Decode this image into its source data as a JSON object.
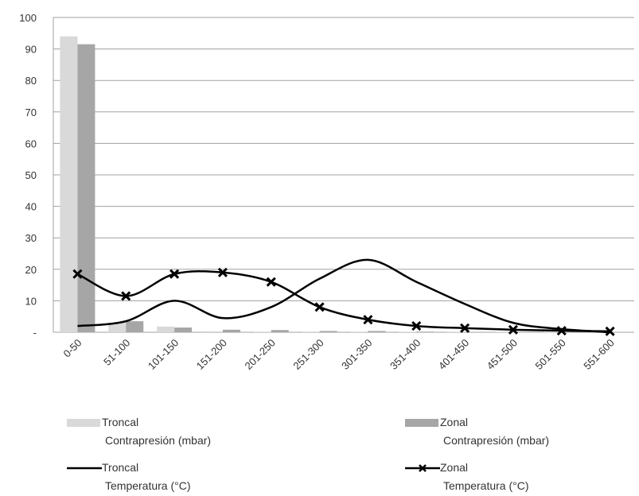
{
  "chart_data": {
    "type": "bar",
    "categories": [
      "0-50",
      "51-100",
      "101-150",
      "151-200",
      "201-250",
      "251-300",
      "301-350",
      "351-400",
      "401-450",
      "451-500",
      "501-550",
      "551-600"
    ],
    "ylim": [
      0,
      100
    ],
    "y_ticks": [
      "100",
      "90",
      "80",
      "70",
      "60",
      "50",
      "40",
      "30",
      "20",
      "10",
      "-"
    ],
    "grid": true,
    "series": [
      {
        "name": "Troncal Contrapresión (mbar)",
        "kind": "bar",
        "color": "#d9d9d9",
        "values": [
          94,
          3,
          1.8,
          0.3,
          0.2,
          0.2,
          0.2,
          0.1,
          0.1,
          0.1,
          0.1,
          0.1
        ]
      },
      {
        "name": "Zonal Contrapresión (mbar)",
        "kind": "bar",
        "color": "#a6a6a6",
        "values": [
          91.5,
          3.5,
          1.5,
          0.8,
          0.7,
          0.4,
          0.4,
          0.2,
          0.1,
          0.1,
          0.1,
          0.1
        ]
      },
      {
        "name": "Troncal Temperatura (°C)",
        "kind": "line",
        "color": "#000000",
        "marker": "none",
        "values": [
          2,
          3.5,
          10,
          4.5,
          8,
          17,
          23,
          16,
          9,
          3,
          1,
          0
        ]
      },
      {
        "name": "Zonal Temperatura (°C)",
        "kind": "line",
        "color": "#000000",
        "marker": "x",
        "values": [
          18.5,
          11.5,
          18.5,
          19,
          16,
          8,
          4,
          2,
          1.3,
          0.8,
          0.5,
          0.3
        ]
      }
    ],
    "legend": {
      "placement": "bottom",
      "items": [
        {
          "line1": "Troncal",
          "line2": "Contrapresión (mbar)"
        },
        {
          "line1": "Zonal",
          "line2": "Contrapresión (mbar)"
        },
        {
          "line1": "Troncal",
          "line2": "Temperatura (°C)"
        },
        {
          "line1": "Zonal",
          "line2": "Temperatura (°C)"
        }
      ]
    }
  }
}
